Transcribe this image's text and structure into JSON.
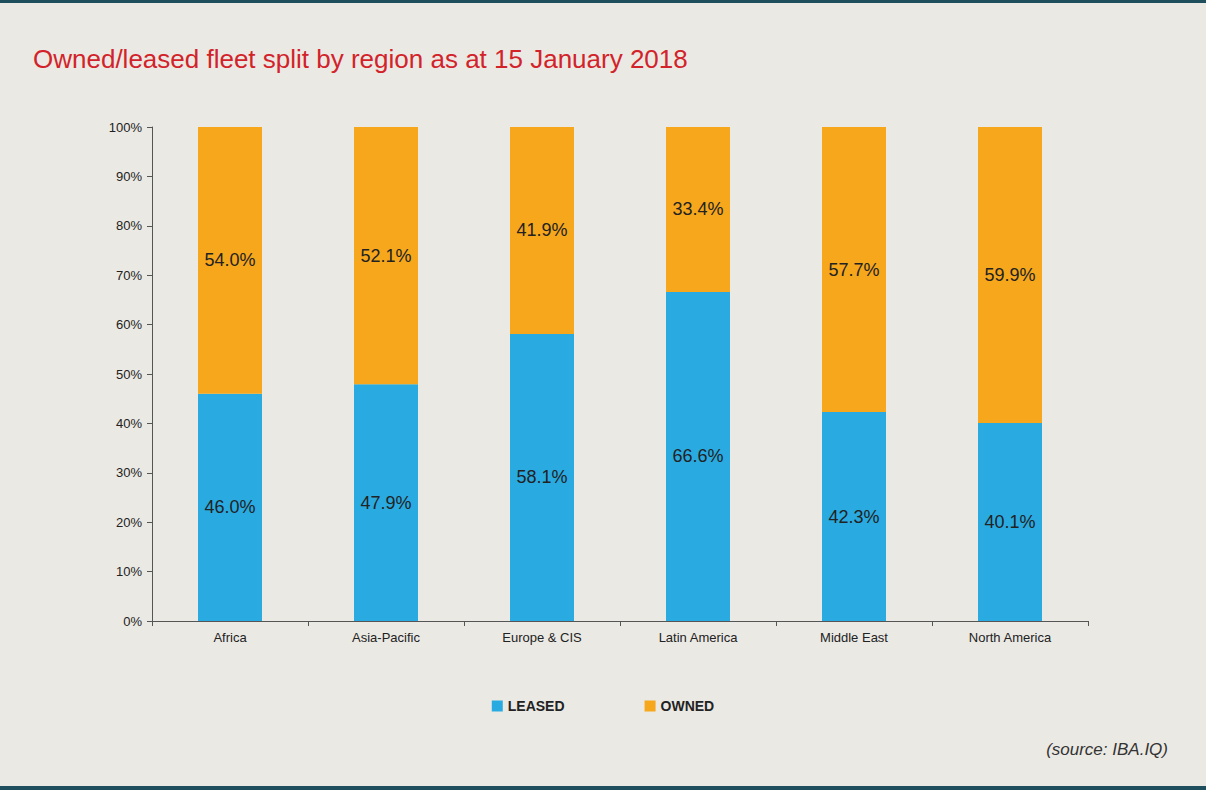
{
  "chart_data": {
    "type": "bar",
    "title": "Owned/leased fleet split by region as at 15 January 2018",
    "annotations": [
      "(source: IBA.IQ)"
    ],
    "categories": [
      "Africa",
      "Asia-Pacific",
      "Europe & CIS",
      "Latin America",
      "Middle East",
      "North America"
    ],
    "series": [
      {
        "name": "LEASED",
        "color": "#29abe2",
        "values": [
          46.0,
          47.9,
          58.1,
          66.6,
          42.3,
          40.1
        ],
        "value_labels": [
          "46.0%",
          "47.9%",
          "58.1%",
          "66.6%",
          "42.3%",
          "40.1%"
        ]
      },
      {
        "name": "OWNED",
        "color": "#f7a71c",
        "values": [
          54.0,
          52.1,
          41.9,
          33.4,
          57.7,
          59.9
        ],
        "value_labels": [
          "54.0%",
          "52.1%",
          "41.9%",
          "33.4%",
          "57.7%",
          "59.9%"
        ]
      }
    ],
    "ylim": [
      0,
      100
    ],
    "yticks": [
      {
        "value": 0,
        "label": "0%"
      },
      {
        "value": 10,
        "label": "10%"
      },
      {
        "value": 20,
        "label": "20%"
      },
      {
        "value": 30,
        "label": "30%"
      },
      {
        "value": 40,
        "label": "40%"
      },
      {
        "value": 50,
        "label": "50%"
      },
      {
        "value": 60,
        "label": "60%"
      },
      {
        "value": 70,
        "label": "70%"
      },
      {
        "value": 80,
        "label": "80%"
      },
      {
        "value": 90,
        "label": "90%"
      },
      {
        "value": 100,
        "label": "100%"
      }
    ],
    "stacked": true,
    "data_labels": true,
    "grid": false,
    "legend": "bottom"
  }
}
